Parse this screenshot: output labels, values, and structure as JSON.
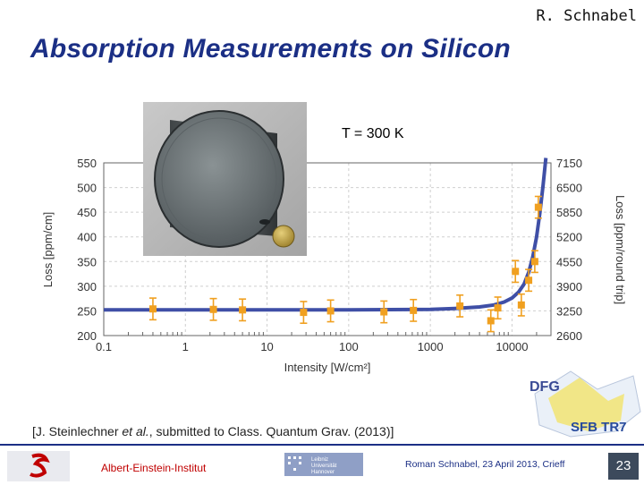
{
  "header": {
    "author": "R. Schnabel",
    "title": "Absorption Measurements on Silicon"
  },
  "annotation": {
    "temperature": "T = 300 K"
  },
  "chart_data": {
    "type": "scatter",
    "xlabel": "Intensity [W/cm²]",
    "ylabel": "Loss [ppm/cm]",
    "ylabel_right": "Loss [ppm/round trip]",
    "x_scale": "log",
    "xlim": [
      0.1,
      30000
    ],
    "ylim": [
      200,
      550
    ],
    "x_ticks": [
      "0.1",
      "1",
      "10",
      "100",
      "1000",
      "10000"
    ],
    "y_ticks": [
      "200",
      "250",
      "300",
      "350",
      "400",
      "450",
      "500",
      "550"
    ],
    "y_right_ticks": [
      "2600",
      "3250",
      "3900",
      "4550",
      "5200",
      "5850",
      "6500",
      "7150"
    ],
    "grid": true,
    "measurements": {
      "x": [
        0.4,
        2.2,
        5,
        28,
        60,
        270,
        620,
        2300,
        5500,
        6700,
        11000,
        13000,
        16000,
        19000,
        21000
      ],
      "y": [
        254,
        253,
        252,
        247,
        250,
        248,
        251,
        260,
        230,
        256,
        330,
        262,
        312,
        350,
        460
      ],
      "err": [
        22,
        22,
        22,
        22,
        22,
        22,
        22,
        22,
        22,
        22,
        22,
        22,
        22,
        22,
        22
      ]
    },
    "model_curve": {
      "x": [
        0.1,
        1,
        10,
        100,
        1000,
        2000,
        4000,
        6000,
        8000,
        10000,
        12000,
        14000,
        16000,
        18000,
        20000,
        22000,
        24000,
        26000
      ],
      "y": [
        252,
        252,
        252,
        252,
        253,
        255,
        258,
        262,
        268,
        276,
        288,
        304,
        328,
        360,
        400,
        450,
        505,
        560
      ]
    }
  },
  "citation": {
    "prefix": "[J. Steinlechner ",
    "etal": "et al.",
    "suffix": ", submitted to Class. Quantum Grav. (2013)]"
  },
  "logos": {
    "dfg": "DFG",
    "sfb": "SFB TR7"
  },
  "footer": {
    "institute": "Albert-Einstein-Institut",
    "credit": "Roman Schnabel, 23 April 2013, Crieff",
    "page": "23",
    "luh_lines": [
      "Leibniz",
      "Universität",
      "Hannover"
    ]
  }
}
